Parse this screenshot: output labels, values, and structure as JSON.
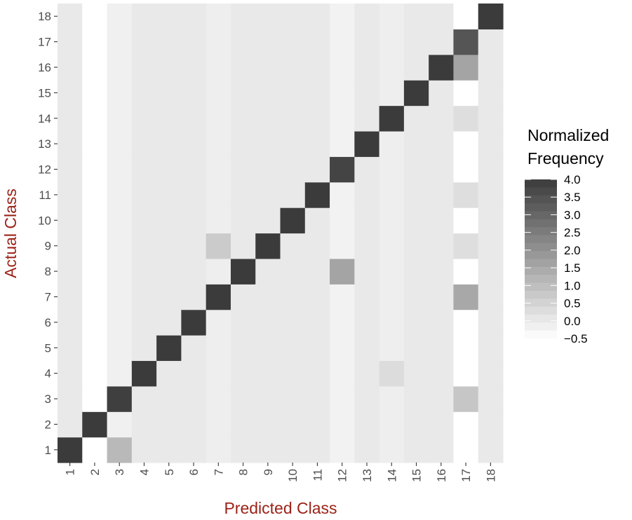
{
  "chart_data": {
    "type": "heatmap",
    "title": "",
    "xlabel": "Predicted Class",
    "ylabel": "Actual Class",
    "x_categories": [
      "1",
      "2",
      "3",
      "4",
      "5",
      "6",
      "7",
      "8",
      "9",
      "10",
      "11",
      "12",
      "13",
      "14",
      "15",
      "16",
      "17",
      "18"
    ],
    "y_categories": [
      "1",
      "2",
      "3",
      "4",
      "5",
      "6",
      "7",
      "8",
      "9",
      "10",
      "11",
      "12",
      "13",
      "14",
      "15",
      "16",
      "17",
      "18"
    ],
    "column_base": [
      0,
      -0.5,
      -0.15,
      0,
      0,
      0,
      -0.1,
      0,
      0,
      0,
      0,
      -0.2,
      0,
      -0.1,
      0,
      0,
      -0.5,
      0
    ],
    "cells": [
      {
        "actual": 1,
        "predicted": 1,
        "value": 4.0
      },
      {
        "actual": 1,
        "predicted": 3,
        "value": 1.1
      },
      {
        "actual": 2,
        "predicted": 2,
        "value": 4.0
      },
      {
        "actual": 3,
        "predicted": 3,
        "value": 3.9
      },
      {
        "actual": 3,
        "predicted": 17,
        "value": 0.8
      },
      {
        "actual": 4,
        "predicted": 4,
        "value": 4.0
      },
      {
        "actual": 4,
        "predicted": 14,
        "value": 0.3
      },
      {
        "actual": 5,
        "predicted": 5,
        "value": 4.0
      },
      {
        "actual": 6,
        "predicted": 6,
        "value": 4.0
      },
      {
        "actual": 7,
        "predicted": 7,
        "value": 4.0
      },
      {
        "actual": 7,
        "predicted": 17,
        "value": 1.5
      },
      {
        "actual": 8,
        "predicted": 8,
        "value": 4.0
      },
      {
        "actual": 8,
        "predicted": 12,
        "value": 1.6
      },
      {
        "actual": 9,
        "predicted": 7,
        "value": 0.7
      },
      {
        "actual": 9,
        "predicted": 9,
        "value": 4.0
      },
      {
        "actual": 9,
        "predicted": 17,
        "value": 0.25
      },
      {
        "actual": 10,
        "predicted": 10,
        "value": 4.0
      },
      {
        "actual": 11,
        "predicted": 11,
        "value": 4.0
      },
      {
        "actual": 11,
        "predicted": 17,
        "value": 0.25
      },
      {
        "actual": 12,
        "predicted": 12,
        "value": 3.8
      },
      {
        "actual": 13,
        "predicted": 13,
        "value": 4.0
      },
      {
        "actual": 14,
        "predicted": 14,
        "value": 4.0
      },
      {
        "actual": 14,
        "predicted": 17,
        "value": 0.25
      },
      {
        "actual": 15,
        "predicted": 15,
        "value": 4.0
      },
      {
        "actual": 16,
        "predicted": 16,
        "value": 4.0
      },
      {
        "actual": 16,
        "predicted": 17,
        "value": 1.6
      },
      {
        "actual": 17,
        "predicted": 17,
        "value": 3.4
      },
      {
        "actual": 18,
        "predicted": 18,
        "value": 4.0
      },
      {
        "actual": 18,
        "predicted": 17,
        "value": -0.5
      }
    ],
    "color_scale": {
      "title": [
        "Normalized",
        "Frequency"
      ],
      "low_color": "#ffffff",
      "high_color": "#3b3b3b",
      "range": [
        -0.5,
        4.0
      ],
      "tick_labels": [
        "4.0",
        "3.5",
        "3.0",
        "2.5",
        "2.0",
        "1.5",
        "1.0",
        "0.5",
        "0.0",
        "−0.5"
      ],
      "tick_values": [
        4.0,
        3.5,
        3.0,
        2.5,
        2.0,
        1.5,
        1.0,
        0.5,
        0.0,
        -0.5
      ]
    },
    "legend_position": "right",
    "grid": true,
    "colors": {
      "panel_background": "#ebebeb",
      "axis_title": "#9b2218",
      "tick_label": "#4d4d4d"
    }
  }
}
